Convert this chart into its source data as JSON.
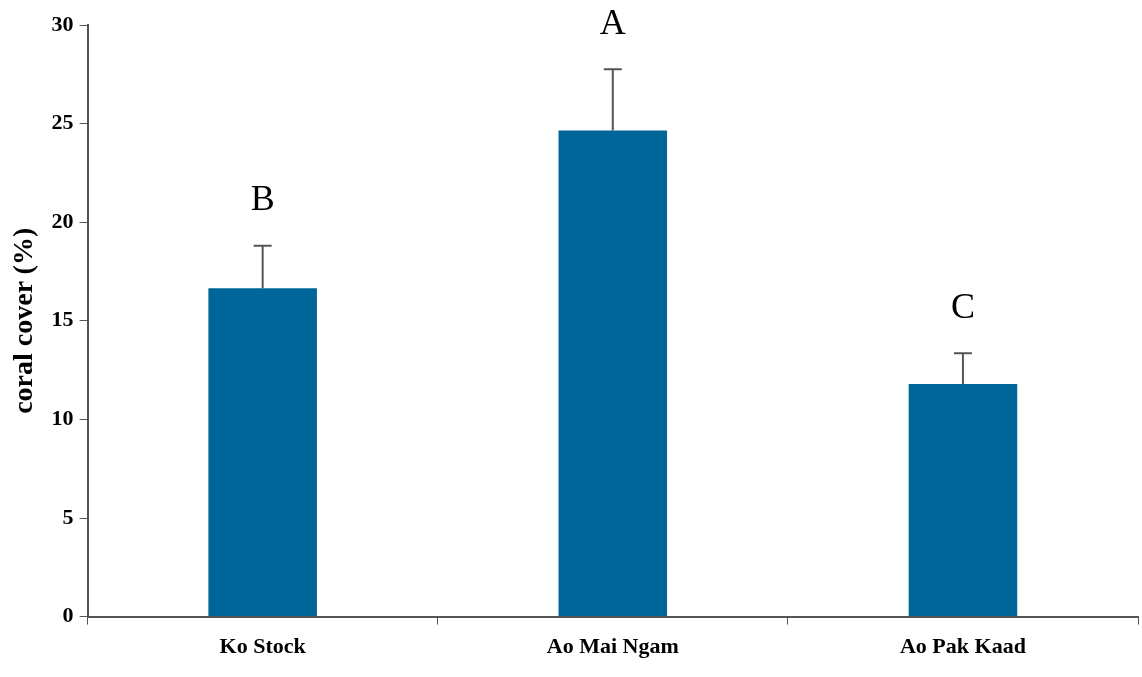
{
  "chart_data": {
    "type": "bar",
    "ylabel": "coral cover (%)",
    "categories": [
      "Ko Stock",
      "Ao Mai Ngam",
      "Ao Pak Kaad"
    ],
    "values": [
      16.65,
      24.65,
      11.8
    ],
    "errors": [
      [
        16.65,
        18.8
      ],
      [
        24.65,
        27.75
      ],
      [
        11.8,
        13.35
      ]
    ],
    "color": "#006699",
    "ylim": [
      0,
      30
    ],
    "yticks": [
      0,
      5,
      10,
      15,
      20,
      25,
      30
    ],
    "grid": false,
    "legend": false,
    "annotations": [
      "B",
      "A",
      "C"
    ]
  }
}
